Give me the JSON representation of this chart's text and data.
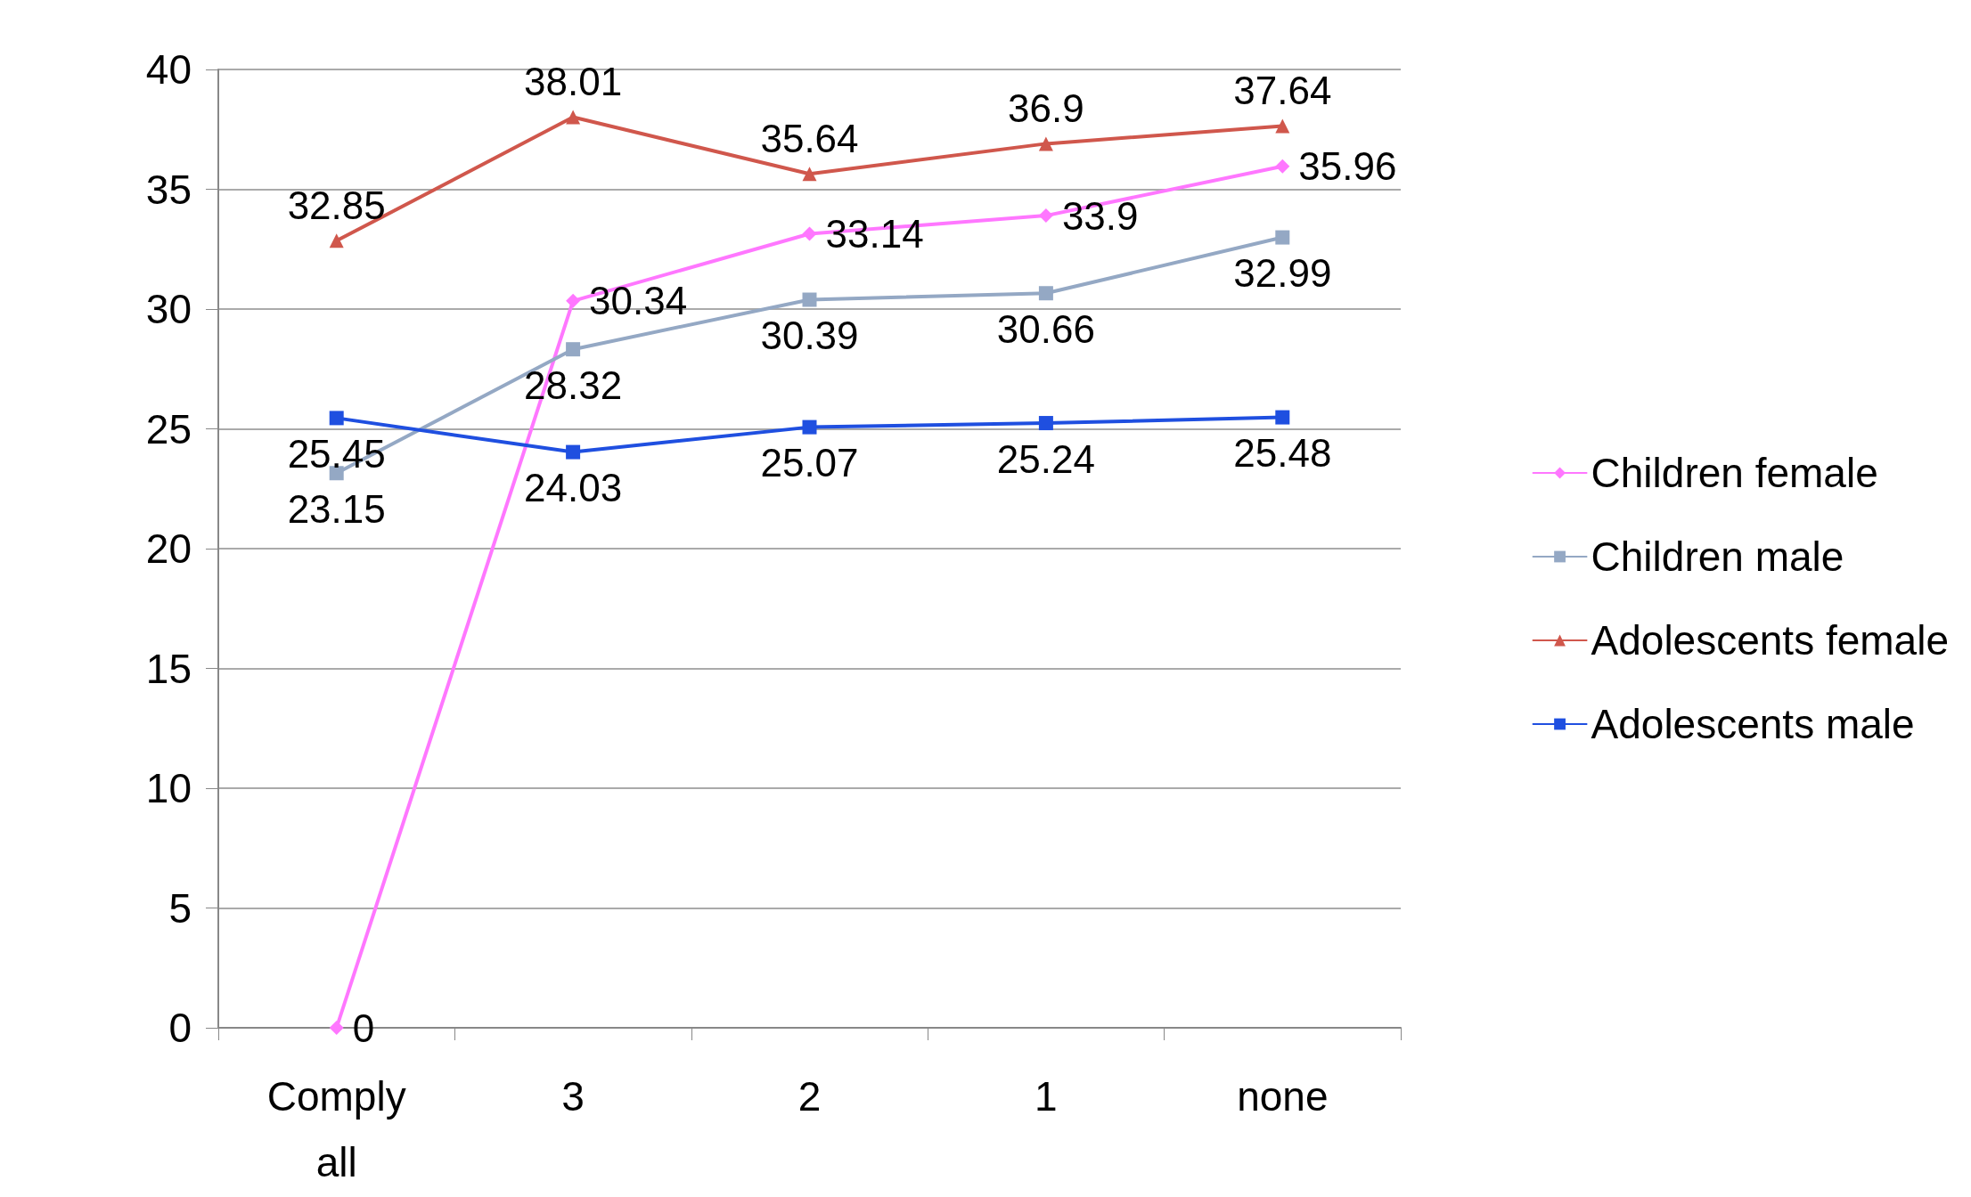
{
  "chart_data": {
    "type": "line",
    "categories": [
      "Comply\nall",
      "3",
      "2",
      "1",
      "none"
    ],
    "series": [
      {
        "name": "Children female",
        "color": "#ff77ff",
        "marker": "diamond",
        "values": [
          0,
          30.34,
          33.14,
          33.9,
          35.96
        ]
      },
      {
        "name": "Children male",
        "color": "#94a8c4",
        "marker": "square",
        "values": [
          23.15,
          28.32,
          30.39,
          30.66,
          32.99
        ]
      },
      {
        "name": "Adolescents female",
        "color": "#d0574c",
        "marker": "triangle",
        "values": [
          32.85,
          38.01,
          35.64,
          36.9,
          37.64
        ]
      },
      {
        "name": "Adolescents male",
        "color": "#1f4fe0",
        "marker": "square",
        "values": [
          25.45,
          24.03,
          25.07,
          25.24,
          25.48
        ]
      }
    ],
    "ylim": [
      0,
      40
    ],
    "yticks": [
      0,
      5,
      10,
      15,
      20,
      25,
      30,
      35,
      40
    ],
    "grid": "y",
    "legend": "right",
    "data_labels": true
  }
}
